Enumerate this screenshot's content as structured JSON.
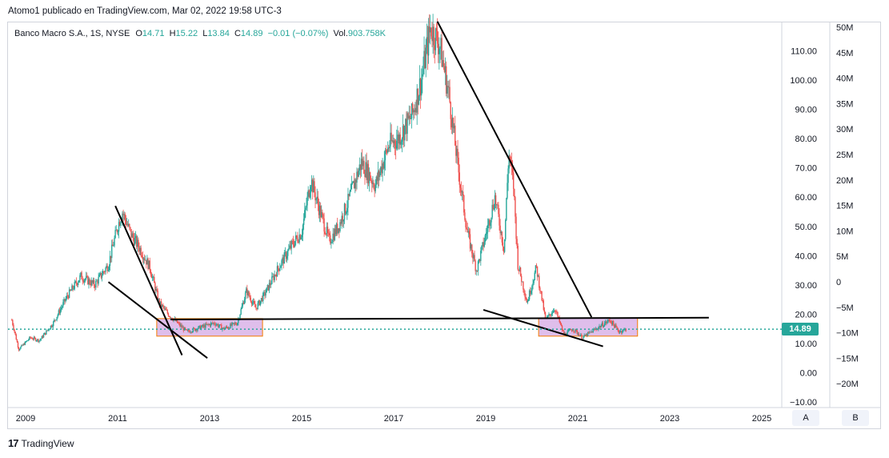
{
  "header": {
    "publisher": "Atomo1 publicado en TradingView.com, Mar 02, 2022 19:58 UTC-3"
  },
  "legend": {
    "symbol": "Banco Macro S.A., 1S, NYSE",
    "o_label": "O",
    "o_value": "14.71",
    "h_label": "H",
    "h_value": "15.22",
    "l_label": "L",
    "l_value": "13.84",
    "c_label": "C",
    "c_value": "14.89",
    "change": "−0.01 (−0.07%)",
    "vol_label": "Vol.",
    "vol_value": "903.758K"
  },
  "price_tag": "14.89",
  "buttons": {
    "a": "A",
    "b": "B"
  },
  "footer": {
    "brand": "TradingView",
    "logo": "17"
  },
  "colors": {
    "up": "#26a69a",
    "down": "#ef5350",
    "line": "#000000",
    "box_fill": "#d1a3e3",
    "box_border": "#f57c00",
    "dotted": "#26a69a"
  },
  "chart_data": {
    "type": "candlestick",
    "title": "Banco Macro S.A., 1S, NYSE",
    "price_axis": {
      "ticks": [
        "110.00",
        "100.00",
        "90.00",
        "80.00",
        "70.00",
        "60.00",
        "50.00",
        "40.00",
        "30.00",
        "20.00",
        "10.00",
        "0.00",
        "−10.00"
      ],
      "values": [
        110,
        100,
        90,
        80,
        70,
        60,
        50,
        40,
        30,
        20,
        10,
        0,
        -10
      ]
    },
    "volume_axis": {
      "ticks": [
        "50M",
        "45M",
        "40M",
        "35M",
        "30M",
        "25M",
        "20M",
        "15M",
        "10M",
        "5M",
        "0",
        "−5M",
        "−10M",
        "−15M",
        "−20M"
      ],
      "values": [
        50,
        45,
        40,
        35,
        30,
        25,
        20,
        15,
        10,
        5,
        0,
        -5,
        -10,
        -15,
        -20
      ]
    },
    "time_axis": {
      "ticks": [
        "2009",
        "2011",
        "2013",
        "2015",
        "2017",
        "2019",
        "2021",
        "2023",
        "2025"
      ],
      "values": [
        2009,
        2011,
        2013,
        2015,
        2017,
        2019,
        2021,
        2023,
        2025
      ]
    },
    "price_path": [
      [
        2008.7,
        18
      ],
      [
        2008.85,
        8
      ],
      [
        2009.1,
        12
      ],
      [
        2009.3,
        11
      ],
      [
        2009.6,
        17
      ],
      [
        2009.9,
        26
      ],
      [
        2010.2,
        33
      ],
      [
        2010.5,
        30
      ],
      [
        2010.8,
        37
      ],
      [
        2011.0,
        50
      ],
      [
        2011.1,
        55
      ],
      [
        2011.3,
        47
      ],
      [
        2011.5,
        42
      ],
      [
        2011.7,
        36
      ],
      [
        2011.9,
        24
      ],
      [
        2012.1,
        20
      ],
      [
        2012.3,
        17
      ],
      [
        2012.5,
        14
      ],
      [
        2012.7,
        15
      ],
      [
        2012.9,
        16
      ],
      [
        2013.1,
        17
      ],
      [
        2013.3,
        15
      ],
      [
        2013.6,
        17
      ],
      [
        2013.8,
        28
      ],
      [
        2014.0,
        22
      ],
      [
        2014.2,
        27
      ],
      [
        2014.5,
        36
      ],
      [
        2014.8,
        44
      ],
      [
        2015.0,
        48
      ],
      [
        2015.2,
        66
      ],
      [
        2015.4,
        55
      ],
      [
        2015.6,
        45
      ],
      [
        2015.8,
        50
      ],
      [
        2016.0,
        58
      ],
      [
        2016.3,
        72
      ],
      [
        2016.6,
        64
      ],
      [
        2016.9,
        78
      ],
      [
        2017.1,
        80
      ],
      [
        2017.4,
        88
      ],
      [
        2017.6,
        100
      ],
      [
        2017.8,
        118
      ],
      [
        2018.0,
        112
      ],
      [
        2018.2,
        95
      ],
      [
        2018.4,
        70
      ],
      [
        2018.6,
        48
      ],
      [
        2018.8,
        35
      ],
      [
        2019.0,
        47
      ],
      [
        2019.2,
        60
      ],
      [
        2019.4,
        42
      ],
      [
        2019.5,
        75
      ],
      [
        2019.6,
        65
      ],
      [
        2019.7,
        37
      ],
      [
        2019.9,
        24
      ],
      [
        2020.1,
        36
      ],
      [
        2020.3,
        18
      ],
      [
        2020.5,
        22
      ],
      [
        2020.7,
        13
      ],
      [
        2020.9,
        15
      ],
      [
        2021.1,
        12
      ],
      [
        2021.3,
        14
      ],
      [
        2021.5,
        16
      ],
      [
        2021.7,
        18
      ],
      [
        2021.9,
        14
      ],
      [
        2022.05,
        14.89
      ]
    ],
    "current_price": 14.89,
    "trend_lines": [
      {
        "from": [
          2010.95,
          57
        ],
        "to": [
          2012.4,
          6
        ]
      },
      {
        "from": [
          2010.8,
          31
        ],
        "to": [
          2012.95,
          5
        ]
      },
      {
        "from": [
          2017.95,
          120
        ],
        "to": [
          2021.3,
          19
        ]
      },
      {
        "from": [
          2018.95,
          21.5
        ],
        "to": [
          2021.55,
          9
        ]
      },
      {
        "from": [
          2012.15,
          18.2
        ],
        "to": [
          2023.85,
          18.8
        ]
      }
    ],
    "boxes": [
      {
        "x0": 2011.85,
        "x1": 2014.15,
        "y0": 12.5,
        "y1": 18.5
      },
      {
        "x0": 2020.15,
        "x1": 2022.3,
        "y0": 12.5,
        "y1": 18.7
      }
    ]
  }
}
